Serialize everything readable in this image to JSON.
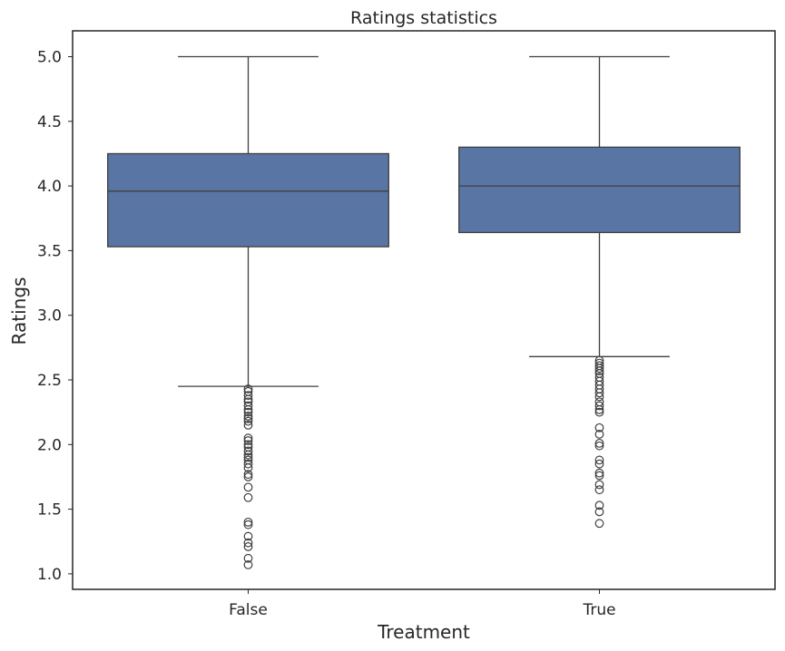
{
  "chart_data": {
    "type": "box",
    "title": "Ratings statistics",
    "xlabel": "Treatment",
    "ylabel": "Ratings",
    "ylim": [
      0.88,
      5.2
    ],
    "yticks": [
      1.0,
      1.5,
      2.0,
      2.5,
      3.0,
      3.5,
      4.0,
      4.5,
      5.0
    ],
    "ytick_labels": [
      "1.0",
      "1.5",
      "2.0",
      "2.5",
      "3.0",
      "3.5",
      "4.0",
      "4.5",
      "5.0"
    ],
    "categories": [
      "False",
      "True"
    ],
    "grid": false,
    "box_color": "#5975a4",
    "line_color": "#3f3f3f",
    "boxes": [
      {
        "category": "False",
        "whisker_low": 2.45,
        "q1": 3.53,
        "median": 3.96,
        "q3": 4.25,
        "whisker_high": 5.0,
        "outliers": [
          2.43,
          2.41,
          2.38,
          2.35,
          2.33,
          2.3,
          2.27,
          2.25,
          2.22,
          2.2,
          2.18,
          2.15,
          2.05,
          2.03,
          2.0,
          1.98,
          1.95,
          1.92,
          1.9,
          1.88,
          1.85,
          1.82,
          1.77,
          1.75,
          1.67,
          1.59,
          1.4,
          1.38,
          1.29,
          1.24,
          1.21,
          1.12,
          1.07
        ]
      },
      {
        "category": "True",
        "whisker_low": 2.68,
        "q1": 3.64,
        "median": 4.0,
        "q3": 4.3,
        "whisker_high": 5.0,
        "outliers": [
          2.65,
          2.63,
          2.61,
          2.59,
          2.57,
          2.55,
          2.52,
          2.49,
          2.46,
          2.43,
          2.4,
          2.37,
          2.33,
          2.3,
          2.27,
          2.25,
          2.13,
          2.08,
          2.01,
          1.99,
          1.88,
          1.85,
          1.78,
          1.76,
          1.69,
          1.65,
          1.53,
          1.48,
          1.39
        ]
      }
    ]
  }
}
